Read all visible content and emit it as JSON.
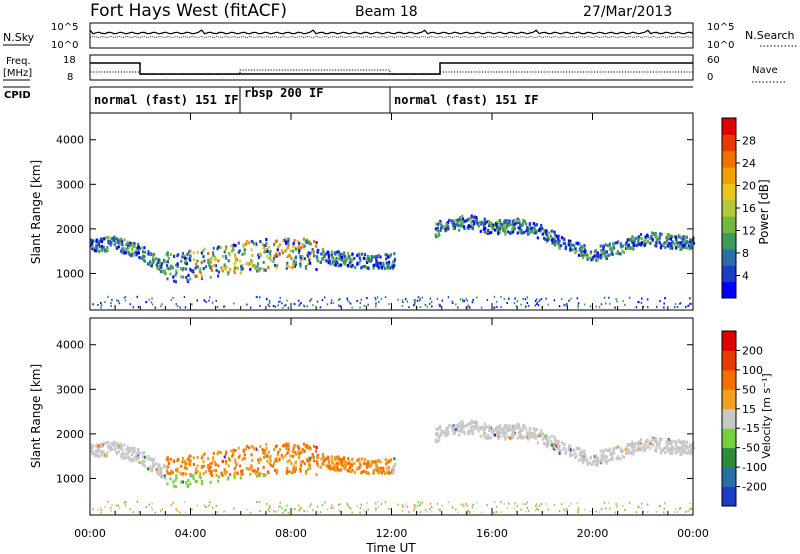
{
  "header": {
    "title": "Fort Hays West (fitACF)",
    "beam": "Beam 18",
    "date": "27/Mar/2013"
  },
  "status_panels": {
    "nsky_label": "N.Sky",
    "nsearch_label": "N.Search",
    "nsky_ticks": [
      "10^5",
      "10^0"
    ],
    "nsearch_ticks": [
      "10^5",
      "10^0"
    ],
    "freq_label": "Freq.",
    "freq_unit": "[MHz]",
    "freq_ticks": [
      "18",
      "8"
    ],
    "nave_label": "Nave",
    "nave_ticks": [
      "60",
      "0"
    ],
    "cpid_label": "CPID",
    "cpid_segments": [
      {
        "label": "normal (fast) 151 IF",
        "start_h": 0,
        "end_h": 6
      },
      {
        "label": "rbsp 200 IF",
        "start_h": 6,
        "end_h": 12
      },
      {
        "label": "normal (fast) 151 IF",
        "start_h": 12,
        "end_h": 24
      }
    ]
  },
  "chart_data": [
    {
      "type": "heatmap",
      "ylabel": "Slant Range [km]",
      "y_ticks": [
        "4000",
        "3000",
        "2000",
        "1000"
      ],
      "y_values": [
        4000,
        3000,
        2000,
        1000
      ],
      "ylim": [
        180,
        4600
      ],
      "colorbar": {
        "label": "Power [dB]",
        "ticks": [
          "28",
          "24",
          "20",
          "16",
          "12",
          "8",
          "4"
        ],
        "colors": [
          "#0000ff",
          "#1a3cc8",
          "#2a6ea8",
          "#3c9a5a",
          "#73b83c",
          "#b4c83c",
          "#e8c820",
          "#f0a000",
          "#f07000",
          "#e83a00",
          "#e00000"
        ]
      },
      "echo_band": [
        {
          "x": 0.0,
          "y": 1650
        },
        {
          "x": 1.0,
          "y": 1700
        },
        {
          "x": 2.0,
          "y": 1500
        },
        {
          "x": 3.0,
          "y": 1150
        },
        {
          "x": 4.0,
          "y": 1200
        },
        {
          "x": 5.0,
          "y": 1300
        },
        {
          "x": 6.0,
          "y": 1400
        },
        {
          "x": 7.0,
          "y": 1450
        },
        {
          "x": 8.0,
          "y": 1500
        },
        {
          "x": 9.0,
          "y": 1450
        },
        {
          "x": 10.0,
          "y": 1350
        },
        {
          "x": 11.0,
          "y": 1300
        },
        {
          "x": 12.0,
          "y": 1300
        },
        {
          "x": 14.0,
          "y": 2100
        },
        {
          "x": 15.0,
          "y": 2200
        },
        {
          "x": 16.0,
          "y": 2050
        },
        {
          "x": 17.0,
          "y": 2100
        },
        {
          "x": 18.0,
          "y": 1950
        },
        {
          "x": 19.0,
          "y": 1650
        },
        {
          "x": 20.0,
          "y": 1450
        },
        {
          "x": 21.0,
          "y": 1600
        },
        {
          "x": 22.0,
          "y": 1800
        },
        {
          "x": 23.0,
          "y": 1750
        },
        {
          "x": 24.0,
          "y": 1700
        }
      ]
    },
    {
      "type": "heatmap",
      "ylabel": "Slant Range [km]",
      "y_ticks": [
        "4000",
        "3000",
        "2000",
        "1000"
      ],
      "y_values": [
        4000,
        3000,
        2000,
        1000
      ],
      "ylim": [
        180,
        4600
      ],
      "xlabel": "Time UT",
      "x_ticks": [
        "00:00",
        "04:00",
        "08:00",
        "12:00",
        "16:00",
        "20:00",
        "00:00"
      ],
      "xlim": [
        0,
        24
      ],
      "colorbar": {
        "label": "Velocity [m s⁻¹]",
        "ticks": [
          "200",
          "100",
          "50",
          "15",
          "-15",
          "-50",
          "-100",
          "-200"
        ],
        "colors": [
          "#1a3cc8",
          "#2a6ea8",
          "#2e8b3c",
          "#73d040",
          "#c8c8c8",
          "#f0a020",
          "#f07000",
          "#e83a00",
          "#e00000"
        ]
      }
    }
  ]
}
